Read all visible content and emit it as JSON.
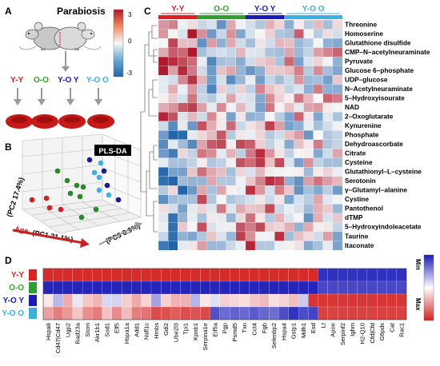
{
  "panels": {
    "A": {
      "letter": "A",
      "title": "Parabiosis",
      "groups": [
        {
          "label": "Y-Y",
          "color": "#e02020"
        },
        {
          "label": "O-O",
          "color": "#2ea02e"
        },
        {
          "label": "Y-O Y",
          "color": "#1a1ab8"
        },
        {
          "label": "Y-O O",
          "color": "#3ab0e0"
        }
      ]
    },
    "B": {
      "letter": "B",
      "title": "PLS-DA",
      "axes": {
        "pc1": "(PC1 21.1%)",
        "age": "Age",
        "pc2": "(PC2 17.4%)",
        "pc3": "(PC3 6.9%)"
      }
    },
    "C": {
      "letter": "C",
      "colorbar": {
        "max": "3",
        "mid": "0",
        "min": "-3"
      },
      "groups": [
        {
          "label": "Y-Y",
          "color": "#e02020",
          "n": 4
        },
        {
          "label": "O-O",
          "color": "#2ea02e",
          "n": 5
        },
        {
          "label": "Y-O Y",
          "color": "#1a1ab8",
          "n": 4
        },
        {
          "label": "Y-O O",
          "color": "#3ab0e0",
          "n": 6
        }
      ],
      "metabolites": [
        "Threonine",
        "Homoserine",
        "Glutathione disulfide",
        "CMP–N–acetylneuraminate",
        "Pyruvate",
        "Glucose 6–phosphate",
        "UDP–glucose",
        "N–Acetylneuraminate",
        "5–Hydroxyisourate",
        "NAD",
        "2–Oxoglutarate",
        "Kynurenine",
        "Phosphate",
        "Dehydroascorbate",
        "Citrate",
        "Cysteine",
        "Glutathionyl–L–cysteine",
        "Serotonin",
        "γ–Glutamyl–alanine",
        "Cystine",
        "Pantothenol",
        "dTMP",
        "5–Hydroxyindoleacetate",
        "Taurine",
        "Itaconate"
      ]
    },
    "D": {
      "letter": "D",
      "groups": [
        {
          "label": "Y-Y",
          "color": "#e02020"
        },
        {
          "label": "O-O",
          "color": "#2ea02e"
        },
        {
          "label": "Y-O Y",
          "color": "#1a1ab8"
        },
        {
          "label": "Y-O O",
          "color": "#3ab0e0"
        }
      ],
      "legend": {
        "min": "Min",
        "max": "Max"
      },
      "genes": [
        {
          "name": "Hspa8",
          "highlight": false
        },
        {
          "name": "Cd47|Cd47",
          "highlight": false
        },
        {
          "name": "Ugp2",
          "highlight": false
        },
        {
          "name": "Rad23a",
          "highlight": false
        },
        {
          "name": "Stom",
          "highlight": false
        },
        {
          "name": "Akr1b1",
          "highlight": false
        },
        {
          "name": "Sod1",
          "highlight": true
        },
        {
          "name": "Elf5",
          "highlight": false
        },
        {
          "name": "Hspa1a",
          "highlight": false
        },
        {
          "name": "Add1",
          "highlight": false
        },
        {
          "name": "Nsfl1c",
          "highlight": false
        },
        {
          "name": "Hmbs",
          "highlight": false
        },
        {
          "name": "Gdi2",
          "highlight": false
        },
        {
          "name": "Ube2l3",
          "highlight": false
        },
        {
          "name": "Tpi1",
          "highlight": false
        },
        {
          "name": "Kpnb1",
          "highlight": false
        },
        {
          "name": "Serpina1e",
          "highlight": false
        },
        {
          "name": "Eif5a",
          "highlight": false
        },
        {
          "name": "Pgp",
          "highlight": false
        },
        {
          "name": "Psmd5",
          "highlight": false
        },
        {
          "name": "Txn",
          "highlight": false
        },
        {
          "name": "Cct4",
          "highlight": false
        },
        {
          "name": "Fgb",
          "highlight": false
        },
        {
          "name": "Selenbp2",
          "highlight": false
        },
        {
          "name": "Hspa4",
          "highlight": false
        },
        {
          "name": "Gstp1",
          "highlight": true
        },
        {
          "name": "Mdh1",
          "highlight": true
        },
        {
          "name": "Esd",
          "highlight": false
        },
        {
          "name": "Lt",
          "highlight": false
        },
        {
          "name": "Apoe",
          "highlight": false
        },
        {
          "name": "Serpinf2",
          "highlight": false
        },
        {
          "name": "Ighm",
          "highlight": false
        },
        {
          "name": "H2-Q10",
          "highlight": false
        },
        {
          "name": "Cfd|Cfd",
          "highlight": false
        },
        {
          "name": "G6pdx",
          "highlight": false
        },
        {
          "name": "Cat",
          "highlight": false
        },
        {
          "name": "Rac1",
          "highlight": false
        }
      ]
    }
  },
  "colors": {
    "red": "#e02020",
    "green": "#2ea02e",
    "blue": "#1a1ab8",
    "cyan": "#3ab0e0",
    "highlight": "#d42a2a"
  }
}
